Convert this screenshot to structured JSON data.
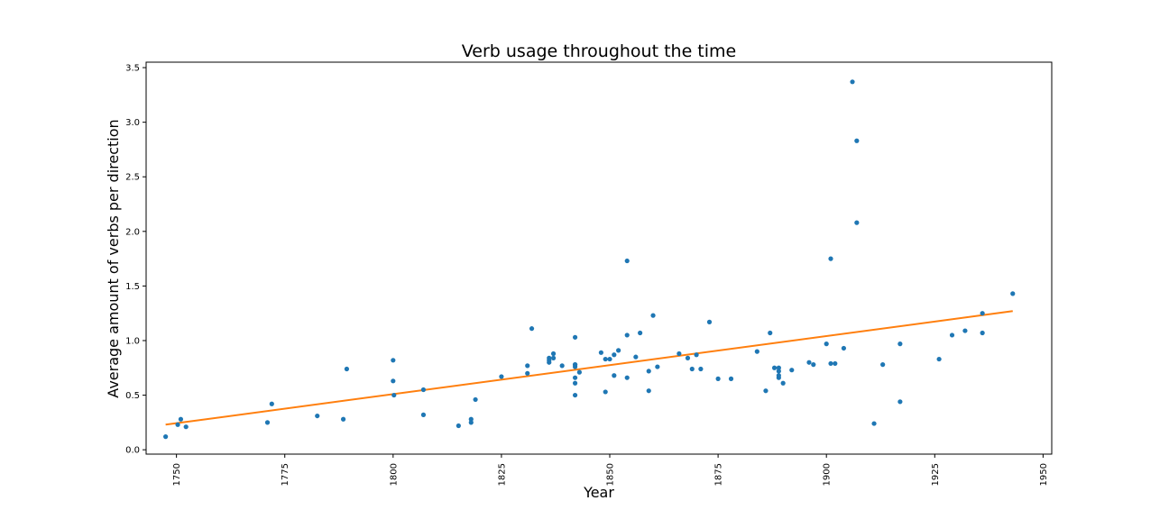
{
  "chart_data": {
    "type": "scatter",
    "title": "Verb usage throughout the time",
    "xlabel": "Year",
    "ylabel": "Average amount of verbs per direction",
    "xlim": [
      1743,
      1952
    ],
    "ylim": [
      -0.04,
      3.55
    ],
    "x_ticks": [
      1750,
      1775,
      1800,
      1825,
      1850,
      1875,
      1900,
      1925,
      1950
    ],
    "y_ticks": [
      0.0,
      0.5,
      1.0,
      1.5,
      2.0,
      2.5,
      3.0,
      3.5
    ],
    "x_tick_labels": [
      "1750",
      "1775",
      "1800",
      "1825",
      "1850",
      "1875",
      "1900",
      "1925",
      "1950"
    ],
    "y_tick_labels": [
      "0.0",
      "0.5",
      "1.0",
      "1.5",
      "2.0",
      "2.5",
      "3.0",
      "3.5"
    ],
    "grid": false,
    "colors": {
      "points": "#1f77b4",
      "trend": "#ff7f0e"
    },
    "series": [
      {
        "kind": "scatter",
        "x": [
          1747.5,
          1750.3,
          1751,
          1752.2,
          1771,
          1772,
          1782.5,
          1788.5,
          1789.3,
          1800,
          1800,
          1800.2,
          1807,
          1807,
          1815.1,
          1818,
          1818,
          1819,
          1825,
          1831,
          1831,
          1832,
          1836,
          1836,
          1836,
          1837,
          1837,
          1839,
          1842,
          1842,
          1842,
          1842,
          1842,
          1842,
          1842,
          1843,
          1848,
          1849,
          1849,
          1850,
          1851,
          1851,
          1852,
          1854,
          1854,
          1854,
          1856,
          1857,
          1859,
          1859,
          1860,
          1861,
          1866,
          1868,
          1869,
          1870,
          1871,
          1873,
          1875,
          1878,
          1884,
          1886,
          1887,
          1888,
          1889,
          1889,
          1889,
          1889,
          1890,
          1892,
          1896,
          1897,
          1900,
          1901,
          1901,
          1902,
          1904,
          1906,
          1907,
          1907,
          1911,
          1913,
          1917,
          1917,
          1926,
          1929,
          1932,
          1936,
          1936,
          1943
        ],
        "y": [
          0.12,
          0.23,
          0.28,
          0.21,
          0.25,
          0.42,
          0.31,
          0.28,
          0.74,
          0.82,
          0.63,
          0.5,
          0.55,
          0.32,
          0.22,
          0.28,
          0.25,
          0.46,
          0.67,
          0.77,
          0.7,
          1.11,
          0.8,
          0.82,
          0.84,
          0.88,
          0.84,
          0.77,
          1.03,
          0.78,
          0.76,
          0.66,
          0.61,
          0.5,
          0.78,
          0.71,
          0.89,
          0.83,
          0.53,
          0.83,
          0.87,
          0.68,
          0.91,
          1.73,
          1.05,
          0.66,
          0.85,
          1.07,
          0.72,
          0.54,
          1.23,
          0.76,
          0.88,
          0.84,
          0.74,
          0.87,
          0.74,
          1.17,
          0.65,
          0.65,
          0.9,
          0.54,
          1.07,
          0.75,
          0.75,
          0.72,
          0.66,
          0.68,
          0.61,
          0.73,
          0.8,
          0.78,
          0.97,
          1.75,
          0.79,
          0.79,
          0.93,
          3.37,
          2.83,
          2.08,
          0.24,
          0.78,
          0.97,
          0.44,
          0.83,
          1.05,
          1.09,
          1.25,
          1.07,
          1.43
        ]
      },
      {
        "kind": "line",
        "x": [
          1747.5,
          1943
        ],
        "y": [
          0.23,
          1.27
        ]
      }
    ]
  }
}
